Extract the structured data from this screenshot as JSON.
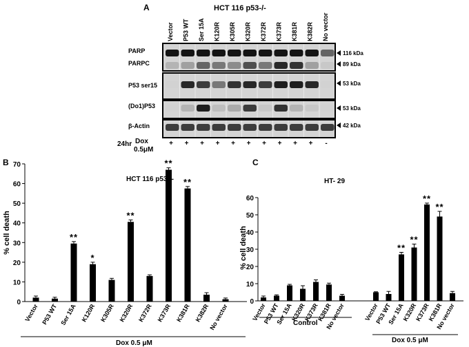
{
  "panel_a": {
    "letter": "A",
    "title": "HCT 116   p53-/-",
    "lanes": [
      "Vector",
      "P53 WT",
      "Ser 15A",
      "K120R",
      "K305R",
      "K320R",
      "K372R",
      "K373R",
      "K381R",
      "K382R",
      "No vector"
    ],
    "blots": [
      {
        "label": "PARP",
        "size": "116 kDa"
      },
      {
        "label": "PARPC",
        "size": "89 kDa"
      },
      {
        "label": "P53 ser15",
        "size": "53 kDa"
      },
      {
        "label": "(Do1)P53",
        "size": "53 kDa"
      },
      {
        "label": "β-Actin",
        "size": "42 kDa"
      }
    ],
    "treatment_time": "24hr",
    "treatment_label_line1": "Dox",
    "treatment_label_line2": "0.5μM",
    "treatment_signs": [
      "+",
      "+",
      "+",
      "+",
      "+",
      "+",
      "+",
      "+",
      "+",
      "+",
      "-"
    ]
  },
  "chart_data": [
    {
      "panel": "B",
      "type": "bar",
      "title": "HCT 116   p53-/-",
      "xlabel": "",
      "ylabel": "% cell death",
      "ylim": [
        0,
        70
      ],
      "yticks": [
        0,
        10,
        20,
        30,
        40,
        50,
        60,
        70
      ],
      "categories": [
        "Vector",
        "P53 WT",
        "Ser 15A",
        "K120R",
        "K305R",
        "K320R",
        "K372R",
        "K373R",
        "K381R",
        "K382R",
        "No vector"
      ],
      "values": [
        2,
        1.5,
        29.5,
        19,
        11,
        40.5,
        13,
        67,
        57.5,
        3.5,
        1.2
      ],
      "errors": [
        0.8,
        0.7,
        1.0,
        1.0,
        0.8,
        1.0,
        0.6,
        1.0,
        1.0,
        1.0,
        0.6
      ],
      "significance": [
        "",
        "",
        "**",
        "*",
        "",
        "**",
        "",
        "**",
        "**",
        "",
        ""
      ],
      "group_label": "Dox 0.5 μM",
      "bar_color": "#000000"
    },
    {
      "panel": "C",
      "type": "bar",
      "title": "HT- 29",
      "xlabel": "",
      "ylabel": "% cell death",
      "ylim": [
        0,
        60
      ],
      "yticks": [
        0,
        10,
        20,
        30,
        40,
        50,
        60
      ],
      "categories": [
        "Vector",
        "P53 WT",
        "Ser 15A",
        "K320R",
        "K373R",
        "K381R",
        "No vector",
        "Vector",
        "P53 WT",
        "Ser 15A",
        "K320R",
        "K373R",
        "K381R",
        "No vector"
      ],
      "values": [
        2,
        3,
        9,
        7,
        11,
        9.5,
        3,
        5,
        4,
        27,
        31,
        56,
        49,
        4.5
      ],
      "errors": [
        0.8,
        0.5,
        0.6,
        1.8,
        1.2,
        0.8,
        0.8,
        0.3,
        1.5,
        1.2,
        2.0,
        0.8,
        3.0,
        1.0
      ],
      "significance": [
        "",
        "",
        "",
        "",
        "",
        "",
        "",
        "",
        "",
        "**",
        "**",
        "**",
        "**",
        ""
      ],
      "group_labels": [
        "Control",
        "Dox 0.5 μM"
      ],
      "bar_color": "#000000"
    }
  ]
}
